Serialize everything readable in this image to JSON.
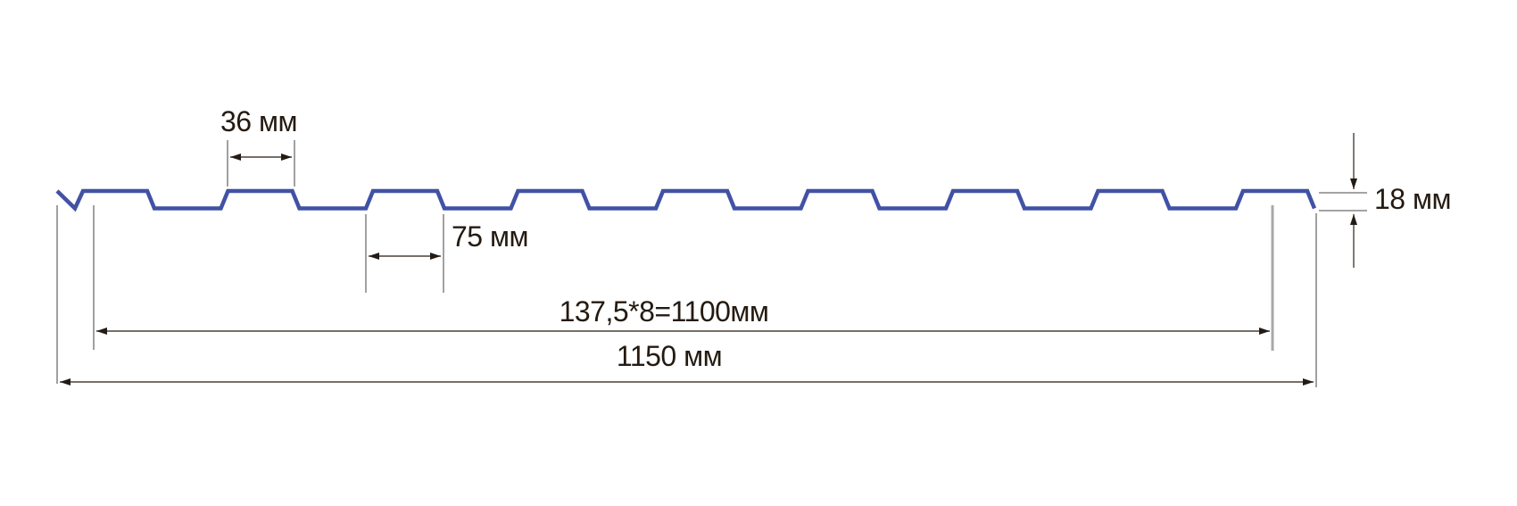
{
  "diagram": {
    "type": "profiled-sheet-cross-section",
    "units": "мм",
    "colors": {
      "profile_blue": "#4152a5",
      "dimension_line": "#4a4038",
      "extension_line": "#6e6e6e",
      "thick_extension_line": "#a8a8a8",
      "text": "#241a10"
    },
    "profile": {
      "rib_count": 8,
      "rib_top_count": 9,
      "shape": "trapezoidal"
    },
    "dimensions": {
      "rib_top_width": {
        "label": "36 мм",
        "value_mm": 36
      },
      "rib_base_width": {
        "label": "75 мм",
        "value_mm": 75
      },
      "profile_height": {
        "label": "18 мм",
        "value_mm": 18
      },
      "working_width": {
        "label": "137,5*8=1100мм",
        "value_mm": 1100,
        "pitch_mm": 137.5,
        "pitch_count": 8
      },
      "overall_width": {
        "label": "1150 мм",
        "value_mm": 1150
      }
    }
  }
}
